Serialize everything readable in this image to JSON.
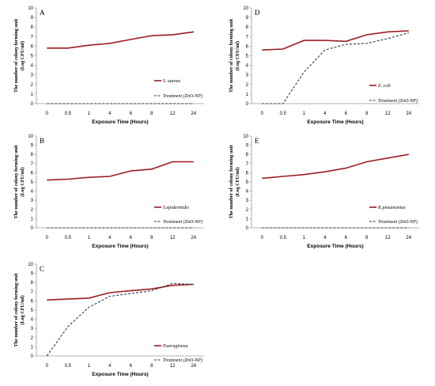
{
  "colors": {
    "control": "#9b1c20",
    "treatment": "#2f3a55",
    "axis": "#9a9a9a"
  },
  "chart_data": [
    {
      "type": "line",
      "panel": "A",
      "categories": [
        "0",
        "0.5",
        "1",
        "4",
        "6",
        "8",
        "12",
        "24"
      ],
      "ylim": [
        0,
        10
      ],
      "yticks": [
        "0",
        "1",
        "2",
        "3",
        "4",
        "5",
        "6",
        "7",
        "8",
        "9",
        "10"
      ],
      "xlabel": "Exposure Time (Hours)",
      "ylabel": [
        "The number of colony forming unit",
        "(Log CFU/ml)"
      ],
      "series": [
        {
          "name": "S. aureus",
          "style": "solid",
          "values": [
            5.8,
            5.8,
            6.1,
            6.3,
            6.7,
            7.1,
            7.2,
            7.5
          ]
        },
        {
          "name": "Treatment (ZnO-NP)",
          "style": "dashed",
          "values": [
            0,
            0,
            0,
            0,
            0,
            0,
            0,
            0
          ]
        }
      ]
    },
    {
      "type": "line",
      "panel": "D",
      "categories": [
        "0",
        "0.5",
        "1",
        "4",
        "6",
        "8",
        "12",
        "24"
      ],
      "ylim": [
        0,
        10
      ],
      "yticks": [
        "0",
        "1",
        "2",
        "3",
        "4",
        "5",
        "6",
        "7",
        "8",
        "9",
        "10"
      ],
      "xlabel": "Exposure Time (Hours)",
      "ylabel": [
        "The number of colony forming unit",
        "(Log CFU/ml)"
      ],
      "series": [
        {
          "name": "E. coli",
          "style": "solid",
          "values": [
            5.6,
            5.7,
            6.6,
            6.6,
            6.5,
            7.2,
            7.5,
            7.6
          ]
        },
        {
          "name": "Treatment (ZnO-NP)",
          "style": "dashed",
          "values": [
            0,
            0,
            3.3,
            5.6,
            6.2,
            6.3,
            6.8,
            7.4
          ]
        }
      ]
    },
    {
      "type": "line",
      "panel": "B",
      "categories": [
        "0",
        "0.5",
        "1",
        "4",
        "6",
        "8",
        "12",
        "24"
      ],
      "ylim": [
        0,
        10
      ],
      "yticks": [
        "0",
        "1",
        "2",
        "3",
        "4",
        "5",
        "6",
        "7",
        "8",
        "9",
        "10"
      ],
      "xlabel": "Exposure Time (Hours)",
      "ylabel": [
        "The number of colony forming unit",
        "(Log CFU/ml)"
      ],
      "series": [
        {
          "name": "S.epidermidis",
          "style": "solid",
          "values": [
            5.2,
            5.3,
            5.5,
            5.6,
            6.2,
            6.4,
            7.2,
            7.2
          ]
        },
        {
          "name": "Treatment (ZnO-NP)",
          "style": "dashed",
          "values": [
            0,
            0,
            0,
            0,
            0,
            0,
            0,
            0
          ]
        }
      ]
    },
    {
      "type": "line",
      "panel": "E",
      "categories": [
        "0",
        "0.5",
        "1",
        "4",
        "6",
        "8",
        "12",
        "24"
      ],
      "ylim": [
        0,
        10
      ],
      "yticks": [
        "0",
        "1",
        "2",
        "3",
        "4",
        "5",
        "6",
        "7",
        "8",
        "9",
        "10"
      ],
      "xlabel": "Exposure Time (Hours)",
      "ylabel": [
        "The number of colony forming unit",
        "(Log CFU/ml)"
      ],
      "series": [
        {
          "name": "K.pneumoniae",
          "style": "solid",
          "values": [
            5.4,
            5.6,
            5.8,
            6.1,
            6.5,
            7.2,
            7.6,
            8.0
          ]
        },
        {
          "name": "Treatment (ZnO-NP)",
          "style": "dashed",
          "values": [
            0,
            0,
            0,
            0,
            0,
            0,
            0,
            0
          ]
        }
      ]
    },
    {
      "type": "line",
      "panel": "C",
      "categories": [
        "0",
        "0.5",
        "1",
        "4",
        "6",
        "8",
        "12",
        "24"
      ],
      "ylim": [
        0,
        10
      ],
      "yticks": [
        "0",
        "1",
        "2",
        "3",
        "4",
        "5",
        "6",
        "7",
        "8",
        "9",
        "10"
      ],
      "xlabel": "Exposure Time (Hours)",
      "ylabel": [
        "The number of colony forming unit",
        "(Log CFU/ml)"
      ],
      "series": [
        {
          "name": "P.aeruginosa",
          "style": "solid",
          "values": [
            6.1,
            6.2,
            6.3,
            6.9,
            7.1,
            7.3,
            7.7,
            7.8
          ]
        },
        {
          "name": "Treatment (ZnO-NP)",
          "style": "dashed",
          "values": [
            0,
            3.2,
            5.3,
            6.5,
            6.8,
            7.1,
            7.9,
            7.8
          ]
        }
      ]
    }
  ]
}
